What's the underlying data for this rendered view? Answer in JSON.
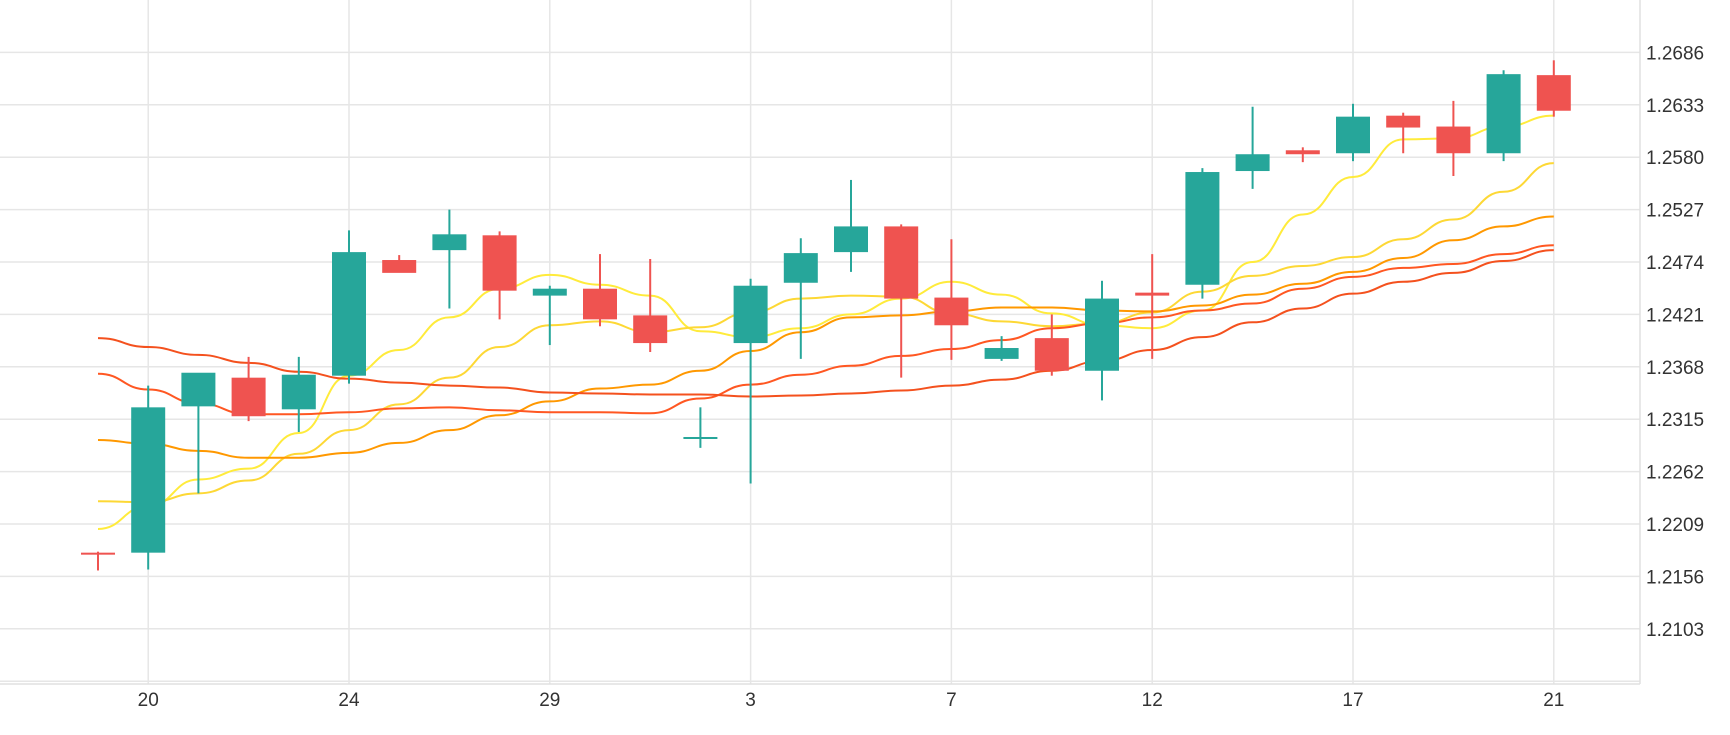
{
  "chart_data": {
    "type": "candlestick",
    "title": "",
    "xlabel": "",
    "ylabel": "",
    "grid": true,
    "legend": "none",
    "ylim": [
      1.205,
      1.274
    ],
    "x_tick_labels": [
      "20",
      "24",
      "29",
      "3",
      "7",
      "12",
      "17",
      "21"
    ],
    "y_tick_labels": [
      "1.2686",
      "1.2633",
      "1.2580",
      "1.2527",
      "1.2474",
      "1.2421",
      "1.2368",
      "1.2315",
      "1.2262",
      "1.2209",
      "1.2156",
      "1.2103"
    ],
    "candles": [
      {
        "o": 1.218,
        "h": 1.2181,
        "l": 1.2162,
        "c": 1.2179
      },
      {
        "o": 1.218,
        "h": 1.2349,
        "l": 1.2163,
        "c": 1.2327
      },
      {
        "o": 1.2328,
        "h": 1.2361,
        "l": 1.224,
        "c": 1.2362
      },
      {
        "o": 1.2357,
        "h": 1.2378,
        "l": 1.2313,
        "c": 1.2318
      },
      {
        "o": 1.2325,
        "h": 1.2378,
        "l": 1.2302,
        "c": 1.236
      },
      {
        "o": 1.2359,
        "h": 1.2506,
        "l": 1.2351,
        "c": 1.2484
      },
      {
        "o": 1.2476,
        "h": 1.2481,
        "l": 1.2464,
        "c": 1.2463
      },
      {
        "o": 1.2486,
        "h": 1.2527,
        "l": 1.2427,
        "c": 1.2502
      },
      {
        "o": 1.2501,
        "h": 1.2505,
        "l": 1.2416,
        "c": 1.2445
      },
      {
        "o": 1.244,
        "h": 1.245,
        "l": 1.239,
        "c": 1.2447
      },
      {
        "o": 1.2447,
        "h": 1.2482,
        "l": 1.2409,
        "c": 1.2416
      },
      {
        "o": 1.242,
        "h": 1.2477,
        "l": 1.2383,
        "c": 1.2392
      },
      {
        "o": 1.2297,
        "h": 1.2327,
        "l": 1.2286,
        "c": 1.2297
      },
      {
        "o": 1.2392,
        "h": 1.2457,
        "l": 1.225,
        "c": 1.245
      },
      {
        "o": 1.2453,
        "h": 1.2498,
        "l": 1.2376,
        "c": 1.2483
      },
      {
        "o": 1.2484,
        "h": 1.2557,
        "l": 1.2464,
        "c": 1.251
      },
      {
        "o": 1.251,
        "h": 1.2512,
        "l": 1.2357,
        "c": 1.2437
      },
      {
        "o": 1.2438,
        "h": 1.2497,
        "l": 1.2375,
        "c": 1.241
      },
      {
        "o": 1.2376,
        "h": 1.2399,
        "l": 1.2374,
        "c": 1.2387
      },
      {
        "o": 1.2397,
        "h": 1.2421,
        "l": 1.2359,
        "c": 1.2364
      },
      {
        "o": 1.2364,
        "h": 1.2455,
        "l": 1.2334,
        "c": 1.2437
      },
      {
        "o": 1.2443,
        "h": 1.2482,
        "l": 1.2376,
        "c": 1.244
      },
      {
        "o": 1.2451,
        "h": 1.2569,
        "l": 1.2437,
        "c": 1.2565
      },
      {
        "o": 1.2566,
        "h": 1.2631,
        "l": 1.2548,
        "c": 1.2583
      },
      {
        "o": 1.2587,
        "h": 1.259,
        "l": 1.2575,
        "c": 1.2583
      },
      {
        "o": 1.2584,
        "h": 1.2634,
        "l": 1.2576,
        "c": 1.2621
      },
      {
        "o": 1.2622,
        "h": 1.2625,
        "l": 1.2584,
        "c": 1.261
      },
      {
        "o": 1.2611,
        "h": 1.2637,
        "l": 1.2561,
        "c": 1.2584
      },
      {
        "o": 1.2584,
        "h": 1.2668,
        "l": 1.2576,
        "c": 1.2664
      },
      {
        "o": 1.2663,
        "h": 1.2678,
        "l": 1.2621,
        "c": 1.2627
      }
    ],
    "moving_averages": [
      {
        "color": "#ffeb3b",
        "values": [
          1.2204,
          1.2227,
          1.2254,
          1.2265,
          1.2301,
          1.2359,
          1.2385,
          1.2418,
          1.2447,
          1.2461,
          1.2451,
          1.244,
          1.2404,
          1.2398,
          1.2407,
          1.2421,
          1.2437,
          1.2454,
          1.2441,
          1.2422,
          1.241,
          1.2407,
          1.2425,
          1.2474,
          1.2522,
          1.256,
          1.2598,
          1.2599,
          1.2611,
          1.2622
        ]
      },
      {
        "color": "#fdd835",
        "values": [
          1.2232,
          1.2231,
          1.224,
          1.2253,
          1.228,
          1.2304,
          1.233,
          1.2357,
          1.2388,
          1.241,
          1.2414,
          1.2403,
          1.2408,
          1.2423,
          1.2437,
          1.244,
          1.2439,
          1.2422,
          1.2414,
          1.2409,
          1.2412,
          1.2423,
          1.2444,
          1.246,
          1.247,
          1.2479,
          1.2497,
          1.2517,
          1.2545,
          1.2574
        ]
      },
      {
        "color": "#ff9800",
        "values": [
          1.2294,
          1.229,
          1.2283,
          1.2276,
          1.2276,
          1.2281,
          1.2291,
          1.2304,
          1.2319,
          1.2333,
          1.2346,
          1.235,
          1.2364,
          1.2384,
          1.2403,
          1.2418,
          1.242,
          1.2424,
          1.2428,
          1.2428,
          1.2425,
          1.2424,
          1.243,
          1.2441,
          1.2452,
          1.2464,
          1.2478,
          1.2496,
          1.251,
          1.252
        ]
      },
      {
        "color": "#ff5722",
        "values": [
          1.2361,
          1.2345,
          1.2331,
          1.232,
          1.232,
          1.2322,
          1.2326,
          1.2327,
          1.2324,
          1.2322,
          1.2322,
          1.2321,
          1.2336,
          1.235,
          1.236,
          1.2369,
          1.2379,
          1.2386,
          1.2395,
          1.2407,
          1.2412,
          1.2418,
          1.2425,
          1.2432,
          1.2447,
          1.2459,
          1.2468,
          1.2472,
          1.2482,
          1.2491
        ]
      },
      {
        "color": "#f4511e",
        "values": [
          1.2397,
          1.2388,
          1.238,
          1.2372,
          1.2363,
          1.2356,
          1.2352,
          1.2349,
          1.2347,
          1.2342,
          1.2341,
          1.234,
          1.234,
          1.2338,
          1.2339,
          1.2341,
          1.2344,
          1.2349,
          1.2355,
          1.2364,
          1.2374,
          1.2385,
          1.2398,
          1.2413,
          1.2427,
          1.2442,
          1.2454,
          1.2463,
          1.2475,
          1.2486
        ]
      }
    ],
    "colors": {
      "up": "#26a69a",
      "down": "#ef5350",
      "grid": "#e6e6e6",
      "axis_text": "#333333"
    }
  }
}
